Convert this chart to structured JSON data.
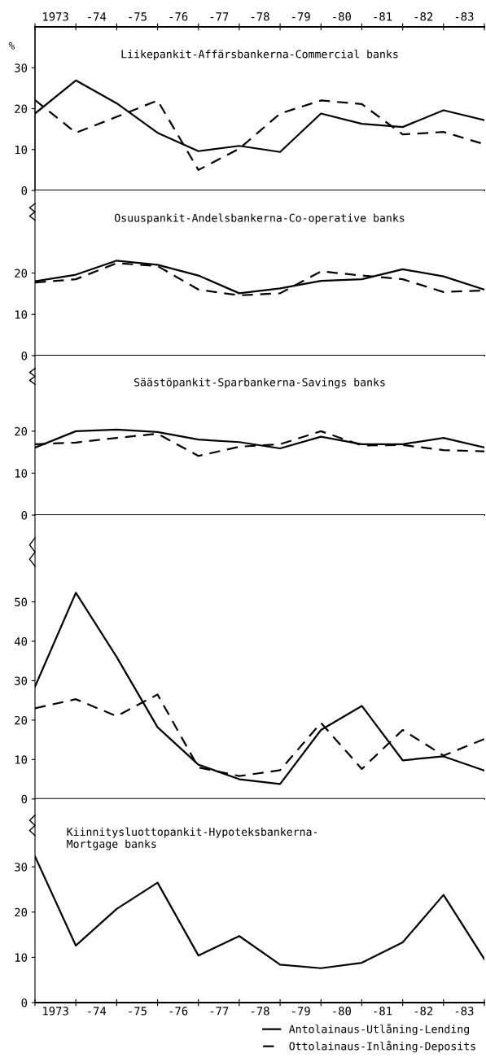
{
  "chart_data": [
    {
      "type": "line",
      "title": "Liikepankit-Affärsbankerna-Commercial banks",
      "ylabel": "%",
      "categories": [
        null,
        "1973",
        null,
        "-74",
        null,
        "-75",
        null,
        "-76",
        null,
        "-77",
        null,
        "-78",
        null,
        "-79",
        null,
        "-80",
        null,
        "-81",
        null,
        "-82",
        null,
        "-83",
        null
      ],
      "series": [
        {
          "name": "Antolainaus-Utlåning-Lending",
          "color": "#000000",
          "line_style": "solid",
          "values": [
            18.8,
            null,
            26.9,
            null,
            21.3,
            null,
            14.1,
            null,
            9.6,
            null,
            10.9,
            null,
            9.4,
            null,
            18.8,
            null,
            16.3,
            null,
            15.5,
            null,
            19.6,
            null,
            17.2
          ]
        },
        {
          "name": "Ottolainaus-Inlåning-Deposits",
          "color": "#000000",
          "line_style": "dashed",
          "values": [
            22.1,
            null,
            14.1,
            null,
            18.0,
            null,
            22.0,
            null,
            5.0,
            null,
            10.2,
            null,
            18.8,
            null,
            22.0,
            null,
            21.1,
            null,
            13.7,
            null,
            14.3,
            null,
            11.3
          ]
        }
      ],
      "ylim": [
        0,
        40
      ],
      "yticks": [
        0,
        10,
        20,
        30
      ],
      "legend": "bottom right"
    },
    {
      "type": "line",
      "title": "Osuuspankit-Andelsbankerna-Co-operative banks",
      "categories": [
        null,
        "1973",
        null,
        "-74",
        null,
        "-75",
        null,
        "-76",
        null,
        "-77",
        null,
        "-78",
        null,
        "-79",
        null,
        "-80",
        null,
        "-81",
        null,
        "-82",
        null,
        "-83",
        null
      ],
      "series": [
        {
          "color": "#000000",
          "line_style": "solid",
          "values": [
            18.0,
            null,
            19.6,
            null,
            23.0,
            null,
            22.0,
            null,
            19.4,
            null,
            15.1,
            null,
            16.3,
            null,
            18.1,
            null,
            18.5,
            null,
            20.9,
            null,
            19.2,
            null,
            16.0
          ]
        },
        {
          "color": "#000000",
          "line_style": "dashed",
          "values": [
            17.7,
            null,
            18.5,
            null,
            22.4,
            null,
            21.7,
            null,
            16.0,
            null,
            14.6,
            null,
            15.1,
            null,
            20.4,
            null,
            19.4,
            null,
            18.5,
            null,
            15.4,
            null,
            15.8
          ]
        }
      ],
      "ylim": [
        0,
        40
      ],
      "yticks": [
        0,
        10,
        20
      ],
      "tick_labels": "y"
    },
    {
      "type": "line",
      "title": "Säästöpankit-Sparbankerna-Savings banks",
      "categories": [
        null,
        "1973",
        null,
        "-74",
        null,
        "-75",
        null,
        "-76",
        null,
        "-77",
        null,
        "-78",
        null,
        "-79",
        null,
        "-80",
        null,
        "-81",
        null,
        "-82",
        null,
        "-83",
        null
      ],
      "series": [
        {
          "color": "#000000",
          "line_style": "solid",
          "values": [
            16.1,
            null,
            20.0,
            null,
            20.4,
            null,
            19.8,
            null,
            18.0,
            null,
            17.4,
            null,
            15.9,
            null,
            18.7,
            null,
            16.9,
            null,
            16.9,
            null,
            18.4,
            null,
            16.1
          ]
        },
        {
          "color": "#000000",
          "line_style": "dashed",
          "values": [
            16.9,
            null,
            17.3,
            null,
            18.4,
            null,
            19.4,
            null,
            14.1,
            null,
            16.3,
            null,
            16.9,
            null,
            20.0,
            null,
            16.6,
            null,
            16.7,
            null,
            15.5,
            null,
            15.2
          ]
        }
      ],
      "ylim": [
        0,
        38
      ],
      "yticks": [
        0,
        10,
        20
      ],
      "tick_labels": "y"
    },
    {
      "type": "line",
      "categories": [
        null,
        "1973",
        null,
        "-74",
        null,
        "-75",
        null,
        "-76",
        null,
        "-77",
        null,
        "-78",
        null,
        "-79",
        null,
        "-80",
        null,
        "-81",
        null,
        "-82",
        null,
        "-83",
        null
      ],
      "series": [
        {
          "color": "#000000",
          "line_style": "solid",
          "values": [
            28.5,
            null,
            52.3,
            null,
            36.0,
            null,
            18.2,
            null,
            8.7,
            null,
            5.0,
            null,
            3.8,
            null,
            17.5,
            null,
            23.6,
            null,
            9.8,
            null,
            10.8,
            null,
            7.2
          ]
        },
        {
          "color": "#000000",
          "line_style": "dashed",
          "values": [
            23.0,
            null,
            25.3,
            null,
            21.0,
            null,
            26.5,
            null,
            8.0,
            null,
            5.8,
            null,
            7.3,
            null,
            19.3,
            null,
            7.6,
            null,
            17.5,
            null,
            11.0,
            null,
            15.2
          ]
        }
      ],
      "ylim": [
        0,
        72
      ],
      "yticks": [
        0,
        10,
        20,
        30,
        40,
        50
      ],
      "tick_labels": "y"
    },
    {
      "type": "line",
      "title": "Kiinnitysluottopankit-Hypoteksbankerna-\nMortgage banks",
      "categories": [
        null,
        "1973",
        null,
        "-74",
        null,
        "-75",
        null,
        "-76",
        null,
        "-77",
        null,
        "-78",
        null,
        "-79",
        null,
        "-80",
        null,
        "-81",
        null,
        "-82",
        null,
        "-83",
        null
      ],
      "series": [
        {
          "color": "#000000",
          "line_style": "solid",
          "values": [
            32.3,
            null,
            12.6,
            null,
            20.7,
            null,
            26.5,
            null,
            10.4,
            null,
            14.7,
            null,
            8.4,
            null,
            7.6,
            null,
            8.8,
            null,
            13.3,
            null,
            23.8,
            null,
            9.6
          ]
        }
      ],
      "ylim": [
        0,
        45
      ],
      "yticks": [
        0,
        10,
        20,
        30
      ]
    }
  ]
}
